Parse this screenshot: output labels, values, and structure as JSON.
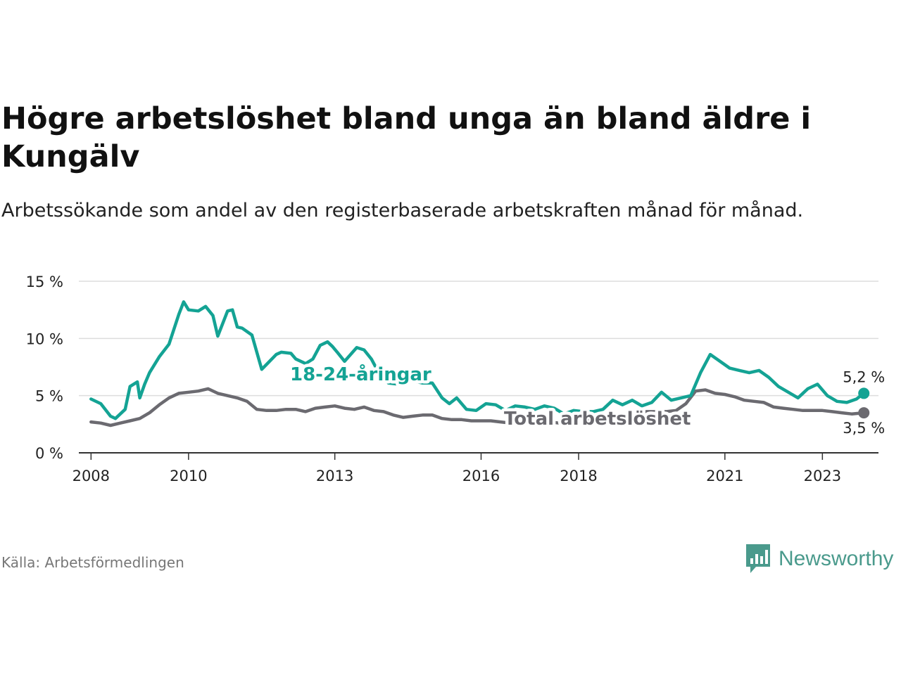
{
  "title": "Högre arbetslöshet bland unga än bland äldre i Kungälv",
  "subtitle": "Arbetssökande som andel av den registerbaserade arbetskraften månad för månad.",
  "source": "Källa: Arbetsförmedlingen",
  "brand": "Newsworthy",
  "colors": {
    "youth": "#14a394",
    "total": "#6b6a70",
    "grid": "#dddddd",
    "axis": "#333333",
    "brand": "#4a9a8c"
  },
  "chart_data": {
    "type": "line",
    "title": "Högre arbetslöshet bland unga än bland äldre i Kungälv",
    "xlabel": "",
    "ylabel": "",
    "ylim": [
      0,
      15
    ],
    "xlim": [
      2007.75,
      2024.15
    ],
    "yticks": [
      0,
      5,
      10,
      15
    ],
    "ytick_labels": [
      "0 %",
      "5 %",
      "10 %",
      "15 %"
    ],
    "xticks": [
      2008,
      2010,
      2013,
      2016,
      2018,
      2021,
      2023
    ],
    "xtick_labels": [
      "2008",
      "2010",
      "2013",
      "2016",
      "2018",
      "2021",
      "2023"
    ],
    "grid": true,
    "series": [
      {
        "name": "18-24-åringar",
        "color": "#14a394",
        "end_label": "5,2 %",
        "x": [
          2008.0,
          2008.2,
          2008.4,
          2008.5,
          2008.7,
          2008.8,
          2008.95,
          2009.0,
          2009.1,
          2009.2,
          2009.4,
          2009.6,
          2009.8,
          2009.9,
          2010.0,
          2010.2,
          2010.35,
          2010.5,
          2010.6,
          2010.8,
          2010.9,
          2011.0,
          2011.1,
          2011.3,
          2011.5,
          2011.8,
          2011.9,
          2012.1,
          2012.2,
          2012.4,
          2012.55,
          2012.7,
          2012.85,
          2012.95,
          2013.05,
          2013.2,
          2013.45,
          2013.6,
          2013.75,
          2013.9,
          2014.1,
          2014.3,
          2014.45,
          2014.6,
          2014.8,
          2015.0,
          2015.2,
          2015.35,
          2015.5,
          2015.7,
          2015.9,
          2016.1,
          2016.3,
          2016.5,
          2016.7,
          2016.9,
          2017.1,
          2017.3,
          2017.5,
          2017.7,
          2017.9,
          2018.1,
          2018.3,
          2018.5,
          2018.7,
          2018.9,
          2019.1,
          2019.3,
          2019.5,
          2019.7,
          2019.9,
          2020.1,
          2020.3,
          2020.5,
          2020.7,
          2020.9,
          2021.1,
          2021.3,
          2021.5,
          2021.7,
          2021.9,
          2022.1,
          2022.3,
          2022.5,
          2022.7,
          2022.9,
          2023.1,
          2023.3,
          2023.5,
          2023.7,
          2023.85
        ],
        "y": [
          4.7,
          4.3,
          3.2,
          3.0,
          3.8,
          5.8,
          6.2,
          4.8,
          6.0,
          7.0,
          8.4,
          9.5,
          12.1,
          13.2,
          12.5,
          12.4,
          12.8,
          12.0,
          10.2,
          12.4,
          12.5,
          11.0,
          10.9,
          10.3,
          7.3,
          8.6,
          8.8,
          8.7,
          8.2,
          7.8,
          8.2,
          9.4,
          9.7,
          9.3,
          8.8,
          8.0,
          9.2,
          9.0,
          8.2,
          7.0,
          6.1,
          6.0,
          6.3,
          6.3,
          6.1,
          6.1,
          4.8,
          4.3,
          4.8,
          3.8,
          3.7,
          4.3,
          4.2,
          3.7,
          4.1,
          4.0,
          3.8,
          4.1,
          3.9,
          3.4,
          3.7,
          3.6,
          3.6,
          3.8,
          4.6,
          4.2,
          4.6,
          4.1,
          4.4,
          5.3,
          4.6,
          4.8,
          5.0,
          7.0,
          8.6,
          8.0,
          7.4,
          7.2,
          7.0,
          7.2,
          6.6,
          5.8,
          5.3,
          4.8,
          5.6,
          6.0,
          5.0,
          4.5,
          4.4,
          4.7,
          5.2
        ]
      },
      {
        "name": "Total arbetslöshet",
        "color": "#6b6a70",
        "end_label": "3,5 %",
        "x": [
          2008.0,
          2008.2,
          2008.4,
          2008.6,
          2008.8,
          2009.0,
          2009.2,
          2009.4,
          2009.6,
          2009.8,
          2010.0,
          2010.2,
          2010.4,
          2010.6,
          2010.8,
          2011.0,
          2011.2,
          2011.4,
          2011.6,
          2011.8,
          2012.0,
          2012.2,
          2012.4,
          2012.6,
          2012.8,
          2013.0,
          2013.2,
          2013.4,
          2013.6,
          2013.8,
          2014.0,
          2014.2,
          2014.4,
          2014.6,
          2014.8,
          2015.0,
          2015.2,
          2015.4,
          2015.6,
          2015.8,
          2016.0,
          2016.2,
          2016.4,
          2016.6,
          2016.8,
          2017.0,
          2017.2,
          2017.4,
          2017.6,
          2017.8,
          2018.0,
          2018.2,
          2018.4,
          2018.6,
          2018.8,
          2019.0,
          2019.2,
          2019.4,
          2019.6,
          2019.8,
          2020.0,
          2020.2,
          2020.4,
          2020.6,
          2020.8,
          2021.0,
          2021.2,
          2021.4,
          2021.6,
          2021.8,
          2022.0,
          2022.2,
          2022.4,
          2022.6,
          2022.8,
          2023.0,
          2023.2,
          2023.4,
          2023.6,
          2023.85
        ],
        "y": [
          2.7,
          2.6,
          2.4,
          2.6,
          2.8,
          3.0,
          3.5,
          4.2,
          4.8,
          5.2,
          5.3,
          5.4,
          5.6,
          5.2,
          5.0,
          4.8,
          4.5,
          3.8,
          3.7,
          3.7,
          3.8,
          3.8,
          3.6,
          3.9,
          4.0,
          4.1,
          3.9,
          3.8,
          4.0,
          3.7,
          3.6,
          3.3,
          3.1,
          3.2,
          3.3,
          3.3,
          3.0,
          2.9,
          2.9,
          2.8,
          2.8,
          2.8,
          2.7,
          2.6,
          2.6,
          2.6,
          2.6,
          2.7,
          2.6,
          2.6,
          2.7,
          2.8,
          2.9,
          3.0,
          3.2,
          3.4,
          3.5,
          3.6,
          3.6,
          3.6,
          3.7,
          4.3,
          5.4,
          5.5,
          5.2,
          5.1,
          4.9,
          4.6,
          4.5,
          4.4,
          4.0,
          3.9,
          3.8,
          3.7,
          3.7,
          3.7,
          3.6,
          3.5,
          3.4,
          3.5
        ]
      }
    ]
  }
}
